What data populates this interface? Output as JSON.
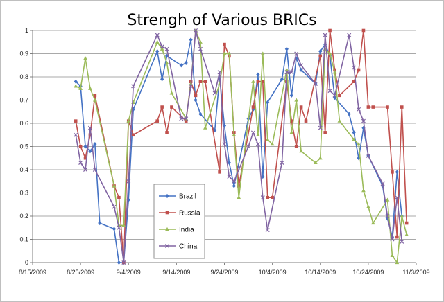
{
  "chart_data": {
    "type": "line",
    "title": "Strengh of Various BRICs",
    "xlabel": "",
    "ylabel": "",
    "x_is_date": true,
    "xlim": [
      "2009-08-15",
      "2009-11-03"
    ],
    "x_tick_labels": [
      "8/15/2009",
      "8/25/2009",
      "9/4/2009",
      "9/14/2009",
      "9/24/2009",
      "10/4/2009",
      "10/14/2009",
      "10/24/2009",
      "11/3/2009"
    ],
    "x_tick_dates": [
      "2009-08-15",
      "2009-08-25",
      "2009-09-04",
      "2009-09-14",
      "2009-09-24",
      "2009-10-04",
      "2009-10-14",
      "2009-10-24",
      "2009-11-03"
    ],
    "ylim": [
      0,
      1
    ],
    "y_ticks": [
      0,
      0.1,
      0.2,
      0.3,
      0.4,
      0.5,
      0.6,
      0.7,
      0.8,
      0.9,
      1
    ],
    "y_tick_labels": [
      "0",
      "0.1",
      "0.2",
      "0.3",
      "0.4",
      "0.5",
      "0.6",
      "0.7",
      "0.8",
      "0.9",
      "1"
    ],
    "grid": "horizontal",
    "legend_position": "inside-lower-center",
    "series": [
      {
        "name": "Brazil",
        "color": "#4472c4",
        "marker": "diamond",
        "points": [
          [
            "2009-08-24",
            0.78
          ],
          [
            "2009-08-25",
            0.76
          ],
          [
            "2009-08-26",
            0.5
          ],
          [
            "2009-08-27",
            0.48
          ],
          [
            "2009-08-28",
            0.51
          ],
          [
            "2009-08-29",
            0.17
          ],
          [
            "2009-09-01",
            0.145
          ],
          [
            "2009-09-02",
            0
          ],
          [
            "2009-09-03",
            0
          ],
          [
            "2009-09-04",
            0.27
          ],
          [
            "2009-09-05",
            0.66
          ],
          [
            "2009-09-10",
            0.91
          ],
          [
            "2009-09-11",
            0.79
          ],
          [
            "2009-09-12",
            0.89
          ],
          [
            "2009-09-15",
            0.85
          ],
          [
            "2009-09-16",
            0.86
          ],
          [
            "2009-09-17",
            0.96
          ],
          [
            "2009-09-18",
            0.7
          ],
          [
            "2009-09-19",
            0.64
          ],
          [
            "2009-09-22",
            0.57
          ],
          [
            "2009-09-23",
            0.8
          ],
          [
            "2009-09-24",
            0.59
          ],
          [
            "2009-09-25",
            0.43
          ],
          [
            "2009-09-26",
            0.33
          ],
          [
            "2009-09-29",
            0.62
          ],
          [
            "2009-09-30",
            0.66
          ],
          [
            "2009-10-01",
            0.81
          ],
          [
            "2009-10-02",
            0.37
          ],
          [
            "2009-10-03",
            0.69
          ],
          [
            "2009-10-06",
            0.79
          ],
          [
            "2009-10-07",
            0.92
          ],
          [
            "2009-10-08",
            0.72
          ],
          [
            "2009-10-09",
            0.88
          ],
          [
            "2009-10-10",
            0.83
          ],
          [
            "2009-10-13",
            0.77
          ],
          [
            "2009-10-14",
            0.91
          ],
          [
            "2009-10-15",
            0.94
          ],
          [
            "2009-10-16",
            0.89
          ],
          [
            "2009-10-17",
            0.71
          ],
          [
            "2009-10-20",
            0.64
          ],
          [
            "2009-10-21",
            0.56
          ],
          [
            "2009-10-22",
            0.45
          ],
          [
            "2009-10-23",
            0.58
          ],
          [
            "2009-10-24",
            0.46
          ],
          [
            "2009-10-27",
            0.33
          ],
          [
            "2009-10-28",
            0.19
          ],
          [
            "2009-10-29",
            0.11
          ],
          [
            "2009-10-30",
            0.39
          ],
          [
            "2009-10-31",
            0.2
          ]
        ]
      },
      {
        "name": "Russia",
        "color": "#c0504d",
        "marker": "square",
        "points": [
          [
            "2009-08-24",
            0.61
          ],
          [
            "2009-08-25",
            0.5
          ],
          [
            "2009-08-26",
            0.45
          ],
          [
            "2009-08-27",
            0.55
          ],
          [
            "2009-08-28",
            0.72
          ],
          [
            "2009-09-01",
            0.33
          ],
          [
            "2009-09-02",
            0.28
          ],
          [
            "2009-09-03",
            0
          ],
          [
            "2009-09-04",
            0.61
          ],
          [
            "2009-09-05",
            0.55
          ],
          [
            "2009-09-10",
            0.61
          ],
          [
            "2009-09-11",
            0.67
          ],
          [
            "2009-09-12",
            0.56
          ],
          [
            "2009-09-13",
            0.67
          ],
          [
            "2009-09-16",
            0.61
          ],
          [
            "2009-09-17",
            0.78
          ],
          [
            "2009-09-18",
            0.72
          ],
          [
            "2009-09-19",
            0.78
          ],
          [
            "2009-09-20",
            0.78
          ],
          [
            "2009-09-23",
            0.39
          ],
          [
            "2009-09-24",
            0.94
          ],
          [
            "2009-09-25",
            0.89
          ],
          [
            "2009-09-26",
            0.56
          ],
          [
            "2009-09-27",
            0.33
          ],
          [
            "2009-09-30",
            0.67
          ],
          [
            "2009-10-01",
            0.78
          ],
          [
            "2009-10-02",
            0.78
          ],
          [
            "2009-10-03",
            0.28
          ],
          [
            "2009-10-04",
            0.28
          ],
          [
            "2009-10-07",
            0.78
          ],
          [
            "2009-10-08",
            0.61
          ],
          [
            "2009-10-09",
            0.5
          ],
          [
            "2009-10-10",
            0.67
          ],
          [
            "2009-10-11",
            0.61
          ],
          [
            "2009-10-14",
            0.89
          ],
          [
            "2009-10-15",
            0.56
          ],
          [
            "2009-10-16",
            1.0
          ],
          [
            "2009-10-17",
            0.83
          ],
          [
            "2009-10-18",
            0.72
          ],
          [
            "2009-10-21",
            0.78
          ],
          [
            "2009-10-22",
            0.83
          ],
          [
            "2009-10-23",
            1.0
          ],
          [
            "2009-10-24",
            0.67
          ],
          [
            "2009-10-25",
            0.67
          ],
          [
            "2009-10-28",
            0.67
          ],
          [
            "2009-10-29",
            0.39
          ],
          [
            "2009-10-30",
            0.11
          ],
          [
            "2009-10-31",
            0.67
          ],
          [
            "2009-11-01",
            0.17
          ]
        ]
      },
      {
        "name": "India",
        "color": "#9bbb59",
        "marker": "triangle",
        "points": [
          [
            "2009-08-24",
            0.76
          ],
          [
            "2009-08-25",
            0.75
          ],
          [
            "2009-08-26",
            0.88
          ],
          [
            "2009-08-27",
            0.75
          ],
          [
            "2009-08-28",
            0.7
          ],
          [
            "2009-09-01",
            0.33
          ],
          [
            "2009-09-02",
            0.16
          ],
          [
            "2009-09-03",
            0.16
          ],
          [
            "2009-09-04",
            0.61
          ],
          [
            "2009-09-05",
            0.69
          ],
          [
            "2009-09-10",
            0.95
          ],
          [
            "2009-09-11",
            0.92
          ],
          [
            "2009-09-12",
            0.86
          ],
          [
            "2009-09-13",
            0.73
          ],
          [
            "2009-09-16",
            0.62
          ],
          [
            "2009-09-17",
            0.77
          ],
          [
            "2009-09-18",
            1.0
          ],
          [
            "2009-09-19",
            0.95
          ],
          [
            "2009-09-20",
            0.58
          ],
          [
            "2009-09-23",
            0.77
          ],
          [
            "2009-09-24",
            0.9
          ],
          [
            "2009-09-25",
            0.9
          ],
          [
            "2009-09-26",
            0.55
          ],
          [
            "2009-09-27",
            0.28
          ],
          [
            "2009-09-30",
            0.78
          ],
          [
            "2009-10-01",
            0.55
          ],
          [
            "2009-10-02",
            0.9
          ],
          [
            "2009-10-03",
            0.53
          ],
          [
            "2009-10-04",
            0.51
          ],
          [
            "2009-10-07",
            0.83
          ],
          [
            "2009-10-08",
            0.56
          ],
          [
            "2009-10-09",
            0.7
          ],
          [
            "2009-10-10",
            0.48
          ],
          [
            "2009-10-13",
            0.43
          ],
          [
            "2009-10-14",
            0.45
          ],
          [
            "2009-10-15",
            0.92
          ],
          [
            "2009-10-16",
            0.9
          ],
          [
            "2009-10-17",
            0.82
          ],
          [
            "2009-10-18",
            0.61
          ],
          [
            "2009-10-21",
            0.53
          ],
          [
            "2009-10-22",
            0.51
          ],
          [
            "2009-10-23",
            0.31
          ],
          [
            "2009-10-24",
            0.24
          ],
          [
            "2009-10-25",
            0.17
          ],
          [
            "2009-10-28",
            0.27
          ],
          [
            "2009-10-29",
            0.03
          ],
          [
            "2009-10-30",
            0
          ],
          [
            "2009-10-31",
            0.2
          ],
          [
            "2009-11-01",
            0.12
          ]
        ]
      },
      {
        "name": "China",
        "color": "#8064a2",
        "marker": "x",
        "points": [
          [
            "2009-08-24",
            0.55
          ],
          [
            "2009-08-25",
            0.43
          ],
          [
            "2009-08-26",
            0.4
          ],
          [
            "2009-08-27",
            0.58
          ],
          [
            "2009-08-28",
            0.4
          ],
          [
            "2009-09-01",
            0.24
          ],
          [
            "2009-09-02",
            0.15
          ],
          [
            "2009-09-03",
            0
          ],
          [
            "2009-09-04",
            0.35
          ],
          [
            "2009-09-05",
            0.76
          ],
          [
            "2009-09-10",
            0.98
          ],
          [
            "2009-09-11",
            0.93
          ],
          [
            "2009-09-12",
            0.92
          ],
          [
            "2009-09-15",
            0.62
          ],
          [
            "2009-09-16",
            0.62
          ],
          [
            "2009-09-17",
            0.76
          ],
          [
            "2009-09-18",
            1.0
          ],
          [
            "2009-09-19",
            0.92
          ],
          [
            "2009-09-22",
            0.73
          ],
          [
            "2009-09-23",
            0.82
          ],
          [
            "2009-09-24",
            0.51
          ],
          [
            "2009-09-25",
            0.37
          ],
          [
            "2009-09-26",
            0.35
          ],
          [
            "2009-09-29",
            0.5
          ],
          [
            "2009-09-30",
            0.56
          ],
          [
            "2009-10-01",
            0.51
          ],
          [
            "2009-10-02",
            0.28
          ],
          [
            "2009-10-03",
            0.14
          ],
          [
            "2009-10-06",
            0.43
          ],
          [
            "2009-10-07",
            0.82
          ],
          [
            "2009-10-08",
            0.82
          ],
          [
            "2009-10-09",
            0.9
          ],
          [
            "2009-10-10",
            0.85
          ],
          [
            "2009-10-13",
            0.77
          ],
          [
            "2009-10-14",
            0.58
          ],
          [
            "2009-10-15",
            0.98
          ],
          [
            "2009-10-16",
            0.74
          ],
          [
            "2009-10-17",
            0.72
          ],
          [
            "2009-10-20",
            0.98
          ],
          [
            "2009-10-21",
            0.84
          ],
          [
            "2009-10-22",
            0.66
          ],
          [
            "2009-10-23",
            0.61
          ],
          [
            "2009-10-24",
            0.46
          ],
          [
            "2009-10-27",
            0.34
          ],
          [
            "2009-10-28",
            0.2
          ],
          [
            "2009-10-29",
            0.1
          ],
          [
            "2009-10-30",
            0.28
          ],
          [
            "2009-10-31",
            0.09
          ]
        ]
      }
    ]
  }
}
